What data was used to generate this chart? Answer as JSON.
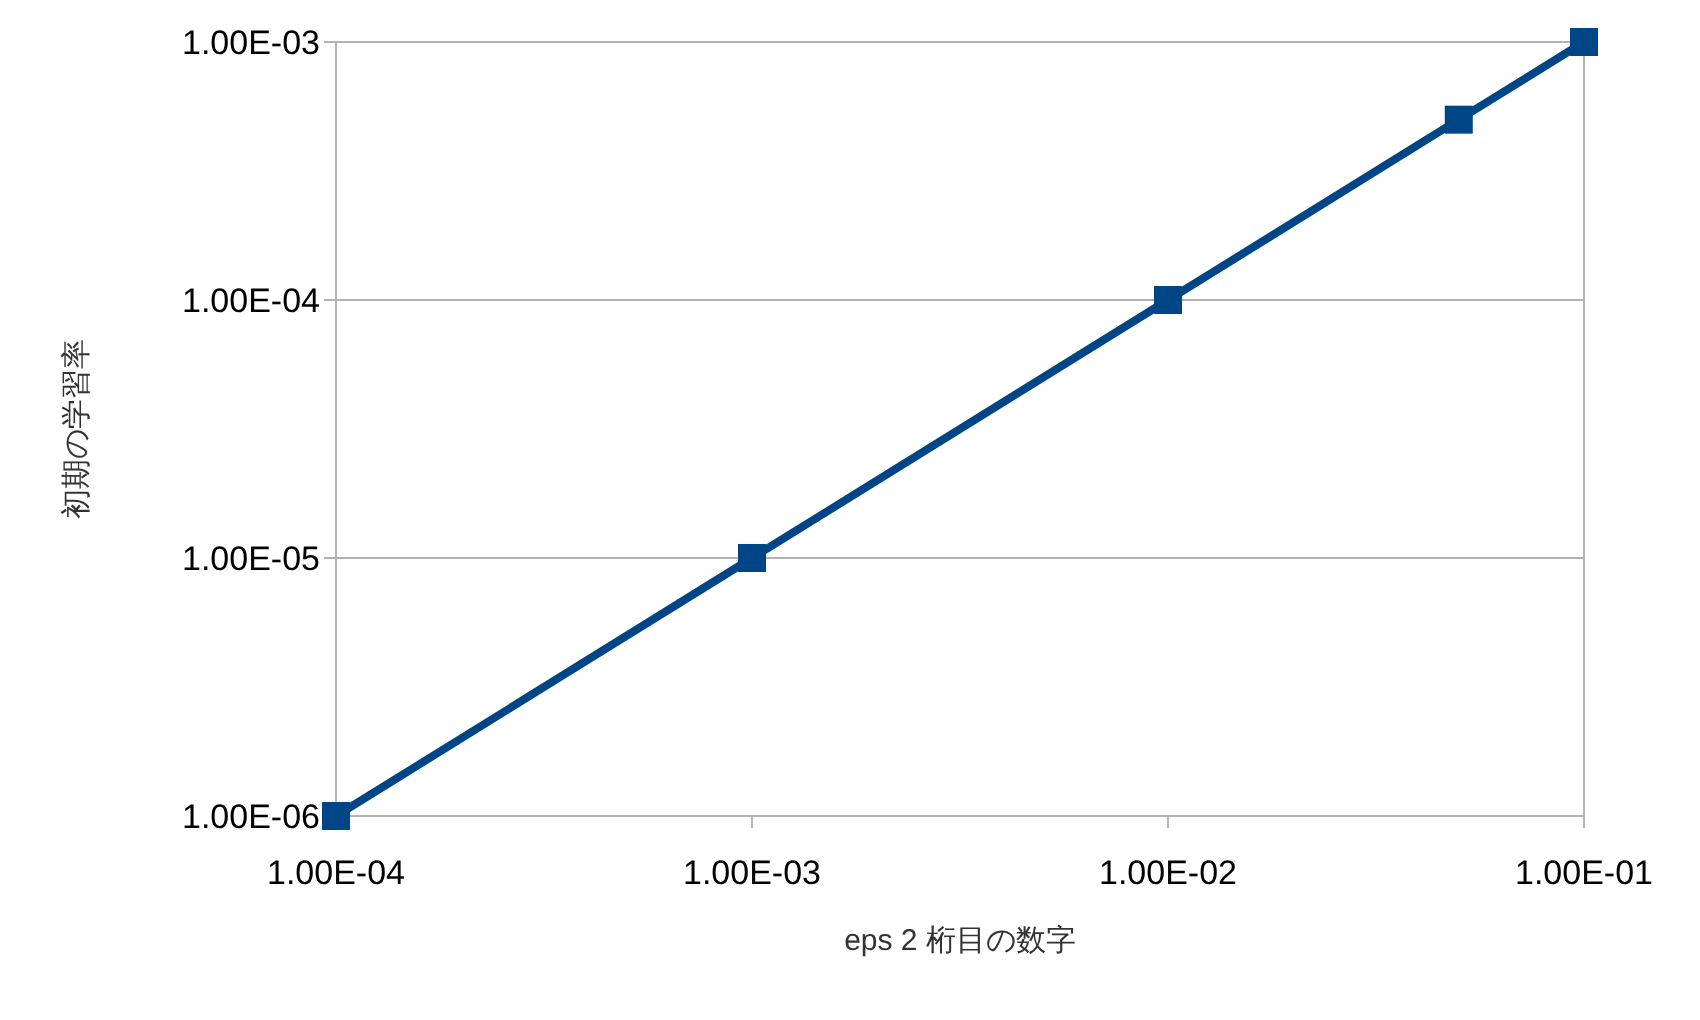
{
  "chart_data": {
    "type": "line",
    "xlabel": "eps 2 桁目の数字",
    "ylabel": "初期の学習率",
    "log": "xy",
    "x": [
      0.0001,
      0.001,
      0.01,
      0.05,
      0.1
    ],
    "series": [
      {
        "color": "#004586",
        "values": [
          1e-06,
          1e-05,
          0.0001,
          0.0005,
          0.001
        ]
      }
    ],
    "xlim": [
      0.0001,
      0.1
    ],
    "ylim": [
      1e-06,
      0.001
    ],
    "xticks": [
      {
        "value": 0.0001,
        "label": "1.00E-04"
      },
      {
        "value": 0.001,
        "label": "1.00E-03"
      },
      {
        "value": 0.01,
        "label": "1.00E-02"
      },
      {
        "value": 0.1,
        "label": "1.00E-01"
      }
    ],
    "yticks": [
      {
        "value": 1e-06,
        "label": "1.00E-06"
      },
      {
        "value": 1e-05,
        "label": "1.00E-05"
      },
      {
        "value": 0.0001,
        "label": "1.00E-04"
      },
      {
        "value": 0.001,
        "label": "1.00E-03"
      }
    ],
    "grid": "y",
    "marker": "square",
    "line_style": "solid"
  }
}
